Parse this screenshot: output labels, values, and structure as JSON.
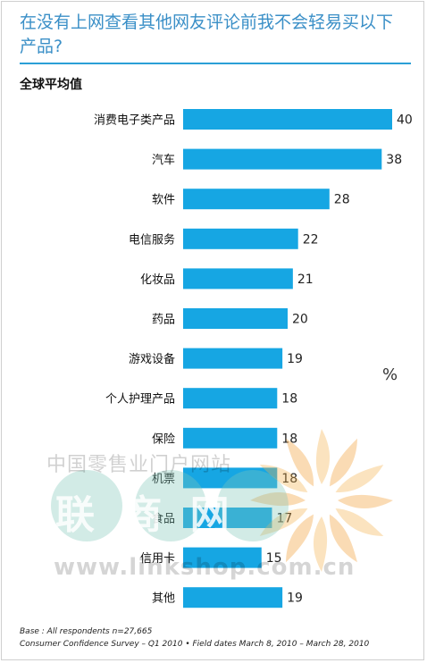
{
  "title": "在没有上网查看其他网友评论前我不会轻易买以下产品?",
  "subtitle": "全球平均值",
  "unit_label": "%",
  "footnotes": [
    "Base : All respondents n=27,665",
    "Consumer Confidence Survey – Q1 2010 • Field dates March 8, 2010 – March 28, 2010"
  ],
  "watermark": {
    "line1": "中国零售业门户网站",
    "line2": "联 商 网",
    "line3": "www.linkshop.com.cn"
  },
  "colors": {
    "bar": "#16a6e3",
    "title": "#3a8fc7",
    "rule": "#2a9fd6"
  },
  "chart_data": {
    "type": "bar",
    "orientation": "horizontal",
    "categories": [
      "消费电子类产品",
      "汽车",
      "软件",
      "电信服务",
      "化妆品",
      "药品",
      "游戏设备",
      "个人护理产品",
      "保险",
      "机票",
      "食品",
      "信用卡",
      "其他"
    ],
    "values": [
      40,
      38,
      28,
      22,
      21,
      20,
      19,
      18,
      18,
      18,
      17,
      15,
      19
    ],
    "xlim": [
      0,
      40
    ],
    "grid": false
  }
}
